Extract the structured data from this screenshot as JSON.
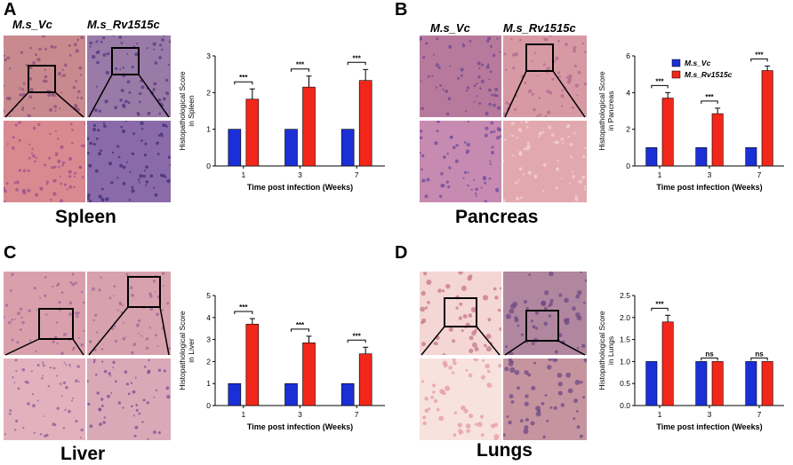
{
  "colors": {
    "vc": "#1a2fd6",
    "rv": "#f2271a",
    "he_pink": "#e8a8b2",
    "he_purple": "#7c4f96",
    "lung_bg": "#f6dcd8"
  },
  "panels": [
    {
      "letter": "A",
      "organ": "Spleen",
      "col_labels": [
        "M.s_Vc",
        "M.s_Rv1515c"
      ],
      "image_description": "Spleen H&E histology, Vc vs Rv1515c",
      "chart_data": {
        "type": "bar",
        "categories": [
          "1",
          "3",
          "7"
        ],
        "series": [
          {
            "name": "M.s_Vc",
            "values": [
              1,
              1,
              1
            ],
            "errors": [
              0,
              0,
              0
            ]
          },
          {
            "name": "M.s_Rv1515c",
            "values": [
              1.82,
              2.15,
              2.33
            ],
            "errors": [
              0.28,
              0.3,
              0.3
            ]
          }
        ],
        "significance": [
          "***",
          "***",
          "***"
        ],
        "ylabel": "Histopathological Score in Spleen",
        "xlabel": "Time post infection (Weeks)",
        "ylim": [
          0,
          3
        ],
        "yticks": [
          "0",
          "1",
          "2",
          "3"
        ],
        "legend": false
      }
    },
    {
      "letter": "B",
      "organ": "Pancreas",
      "col_labels": [
        "M.s_Vc",
        "M.s_Rv1515c"
      ],
      "image_description": "Pancreas H&E histology, Vc vs Rv1515c",
      "chart_data": {
        "type": "bar",
        "categories": [
          "1",
          "3",
          "7"
        ],
        "series": [
          {
            "name": "M.s_Vc",
            "values": [
              1,
              1,
              1
            ],
            "errors": [
              0,
              0,
              0
            ]
          },
          {
            "name": "M.s_Rv1515c",
            "values": [
              3.7,
              2.85,
              5.2
            ],
            "errors": [
              0.3,
              0.3,
              0.25
            ]
          }
        ],
        "significance": [
          "***",
          "***",
          "***"
        ],
        "ylabel": "Histopathological Score in Pancreas",
        "xlabel": "Time post infection (Weeks)",
        "ylim": [
          0,
          6
        ],
        "yticks": [
          "0",
          "2",
          "4",
          "6"
        ],
        "legend": true,
        "legend_placement": "top-left"
      }
    },
    {
      "letter": "C",
      "organ": "Liver",
      "col_labels": [
        "",
        ""
      ],
      "image_description": "Liver H&E histology, Vc vs Rv1515c",
      "chart_data": {
        "type": "bar",
        "categories": [
          "1",
          "3",
          "7"
        ],
        "series": [
          {
            "name": "M.s_Vc",
            "values": [
              1,
              1,
              1
            ],
            "errors": [
              0,
              0,
              0
            ]
          },
          {
            "name": "M.s_Rv1515c",
            "values": [
              3.7,
              2.85,
              2.35
            ],
            "errors": [
              0.25,
              0.3,
              0.3
            ]
          }
        ],
        "significance": [
          "***",
          "***",
          "***"
        ],
        "ylabel": "Histopathological Score in Liver",
        "xlabel": "Time post infection (Weeks)",
        "ylim": [
          0,
          5
        ],
        "yticks": [
          "0",
          "1",
          "2",
          "3",
          "4",
          "5"
        ],
        "legend": false
      }
    },
    {
      "letter": "D",
      "organ": "Lungs",
      "col_labels": [
        "",
        ""
      ],
      "image_description": "Lung H&E histology, Vc vs Rv1515c",
      "chart_data": {
        "type": "bar",
        "categories": [
          "1",
          "3",
          "7"
        ],
        "series": [
          {
            "name": "M.s_Vc",
            "values": [
              1,
              1,
              1
            ],
            "errors": [
              0,
              0,
              0
            ]
          },
          {
            "name": "M.s_Rv1515c",
            "values": [
              1.9,
              1,
              1
            ],
            "errors": [
              0.15,
              0,
              0
            ]
          }
        ],
        "significance": [
          "***",
          "ns",
          "ns"
        ],
        "ylabel": "Histopathological Score in Lungs",
        "xlabel": "Time post infection (Weeks)",
        "ylim": [
          0,
          2.5
        ],
        "yticks": [
          "0.0",
          "0.5",
          "1.0",
          "1.5",
          "2.0",
          "2.5"
        ],
        "legend": false
      }
    }
  ]
}
